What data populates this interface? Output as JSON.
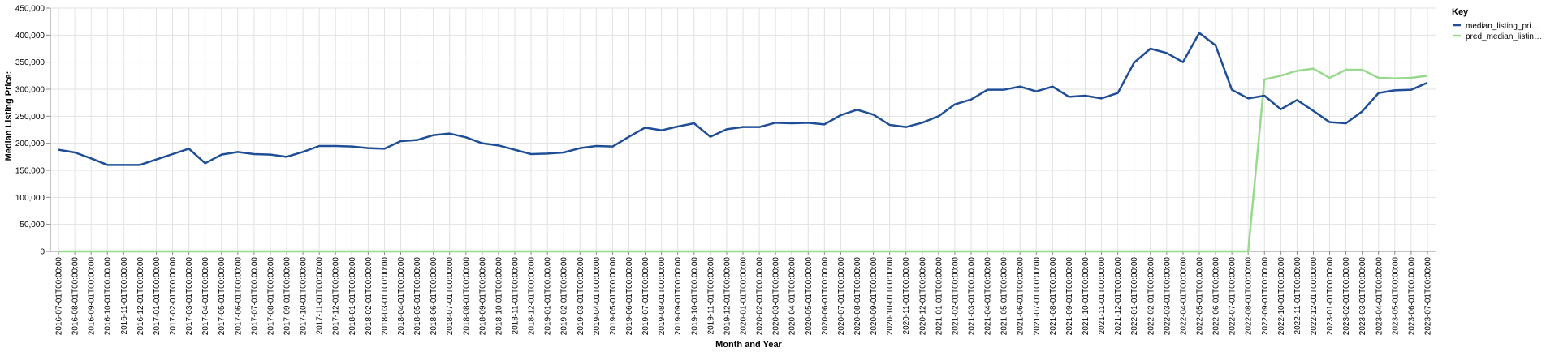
{
  "chart_data": {
    "type": "line",
    "xlabel": "Month and Year",
    "ylabel": "Median Listing Price:",
    "ylim": [
      0,
      450000
    ],
    "y_ticks": [
      0,
      50000,
      100000,
      150000,
      200000,
      250000,
      300000,
      350000,
      400000,
      450000
    ],
    "y_tick_labels": [
      "0",
      "50,000",
      "100,000",
      "150,000",
      "200,000",
      "250,000",
      "300,000",
      "350,000",
      "400,000",
      "450,000"
    ],
    "grid": true,
    "legend": {
      "title": "Key",
      "placement": "top-right",
      "labels": [
        "median_listing_pri…",
        "pred_median_listin…"
      ]
    },
    "colors": {
      "median_listing_price": "#1f4e96",
      "pred_median_listing_price": "#98d98e",
      "grid": "#e2e2e2",
      "axis": "#888888"
    },
    "x": [
      "2016-07-01T00:00:00",
      "2016-08-01T00:00:00",
      "2016-09-01T00:00:00",
      "2016-10-01T00:00:00",
      "2016-11-01T00:00:00",
      "2016-12-01T00:00:00",
      "2017-01-01T00:00:00",
      "2017-02-01T00:00:00",
      "2017-03-01T00:00:00",
      "2017-04-01T00:00:00",
      "2017-05-01T00:00:00",
      "2017-06-01T00:00:00",
      "2017-07-01T00:00:00",
      "2017-08-01T00:00:00",
      "2017-09-01T00:00:00",
      "2017-10-01T00:00:00",
      "2017-11-01T00:00:00",
      "2017-12-01T00:00:00",
      "2018-01-01T00:00:00",
      "2018-02-01T00:00:00",
      "2018-03-01T00:00:00",
      "2018-04-01T00:00:00",
      "2018-05-01T00:00:00",
      "2018-06-01T00:00:00",
      "2018-07-01T00:00:00",
      "2018-08-01T00:00:00",
      "2018-09-01T00:00:00",
      "2018-10-01T00:00:00",
      "2018-11-01T00:00:00",
      "2018-12-01T00:00:00",
      "2019-01-01T00:00:00",
      "2019-02-01T00:00:00",
      "2019-03-01T00:00:00",
      "2019-04-01T00:00:00",
      "2019-05-01T00:00:00",
      "2019-06-01T00:00:00",
      "2019-07-01T00:00:00",
      "2019-08-01T00:00:00",
      "2019-09-01T00:00:00",
      "2019-10-01T00:00:00",
      "2019-11-01T00:00:00",
      "2019-12-01T00:00:00",
      "2020-01-01T00:00:00",
      "2020-02-01T00:00:00",
      "2020-03-01T00:00:00",
      "2020-04-01T00:00:00",
      "2020-05-01T00:00:00",
      "2020-06-01T00:00:00",
      "2020-07-01T00:00:00",
      "2020-08-01T00:00:00",
      "2020-09-01T00:00:00",
      "2020-10-01T00:00:00",
      "2020-11-01T00:00:00",
      "2020-12-01T00:00:00",
      "2021-01-01T00:00:00",
      "2021-02-01T00:00:00",
      "2021-03-01T00:00:00",
      "2021-04-01T00:00:00",
      "2021-05-01T00:00:00",
      "2021-06-01T00:00:00",
      "2021-07-01T00:00:00",
      "2021-08-01T00:00:00",
      "2021-09-01T00:00:00",
      "2021-10-01T00:00:00",
      "2021-11-01T00:00:00",
      "2021-12-01T00:00:00",
      "2022-01-01T00:00:00",
      "2022-02-01T00:00:00",
      "2022-03-01T00:00:00",
      "2022-04-01T00:00:00",
      "2022-05-01T00:00:00",
      "2022-06-01T00:00:00",
      "2022-07-01T00:00:00",
      "2022-08-01T00:00:00",
      "2022-09-01T00:00:00",
      "2022-10-01T00:00:00",
      "2022-11-01T00:00:00",
      "2022-12-01T00:00:00",
      "2023-01-01T00:00:00",
      "2023-02-01T00:00:00",
      "2023-03-01T00:00:00",
      "2023-04-01T00:00:00",
      "2023-05-01T00:00:00",
      "2023-06-01T00:00:00",
      "2023-07-01T00:00:00"
    ],
    "series": [
      {
        "name": "median_listing_pri…",
        "values": [
          188000,
          183000,
          172000,
          160000,
          160000,
          160000,
          170000,
          180000,
          190000,
          163000,
          179000,
          184000,
          180000,
          179000,
          175000,
          184000,
          195000,
          195000,
          194000,
          191000,
          190000,
          204000,
          206000,
          215000,
          218000,
          211000,
          200000,
          196000,
          188000,
          180000,
          181000,
          183000,
          191000,
          195000,
          194000,
          212000,
          229000,
          224000,
          231000,
          237000,
          212000,
          226000,
          230000,
          230000,
          238000,
          237000,
          238000,
          235000,
          252000,
          262000,
          253000,
          234000,
          230000,
          238000,
          250000,
          272000,
          281000,
          299000,
          299000,
          305000,
          296000,
          305000,
          286000,
          288000,
          283000,
          293000,
          349000,
          375000,
          367000,
          350000,
          404000,
          381000,
          299000,
          283000,
          288000,
          263000,
          280000,
          260000,
          239000,
          237000,
          259000,
          293000,
          298000,
          299000,
          312000
        ]
      },
      {
        "name": "pred_median_listin…",
        "values": [
          0,
          0,
          0,
          0,
          0,
          0,
          0,
          0,
          0,
          0,
          0,
          0,
          0,
          0,
          0,
          0,
          0,
          0,
          0,
          0,
          0,
          0,
          0,
          0,
          0,
          0,
          0,
          0,
          0,
          0,
          0,
          0,
          0,
          0,
          0,
          0,
          0,
          0,
          0,
          0,
          0,
          0,
          0,
          0,
          0,
          0,
          0,
          0,
          0,
          0,
          0,
          0,
          0,
          0,
          0,
          0,
          0,
          0,
          0,
          0,
          0,
          0,
          0,
          0,
          0,
          0,
          0,
          0,
          0,
          0,
          0,
          0,
          0,
          0,
          318000,
          325000,
          334000,
          338000,
          321000,
          336000,
          336000,
          321000,
          320000,
          321000,
          325000
        ]
      }
    ]
  }
}
